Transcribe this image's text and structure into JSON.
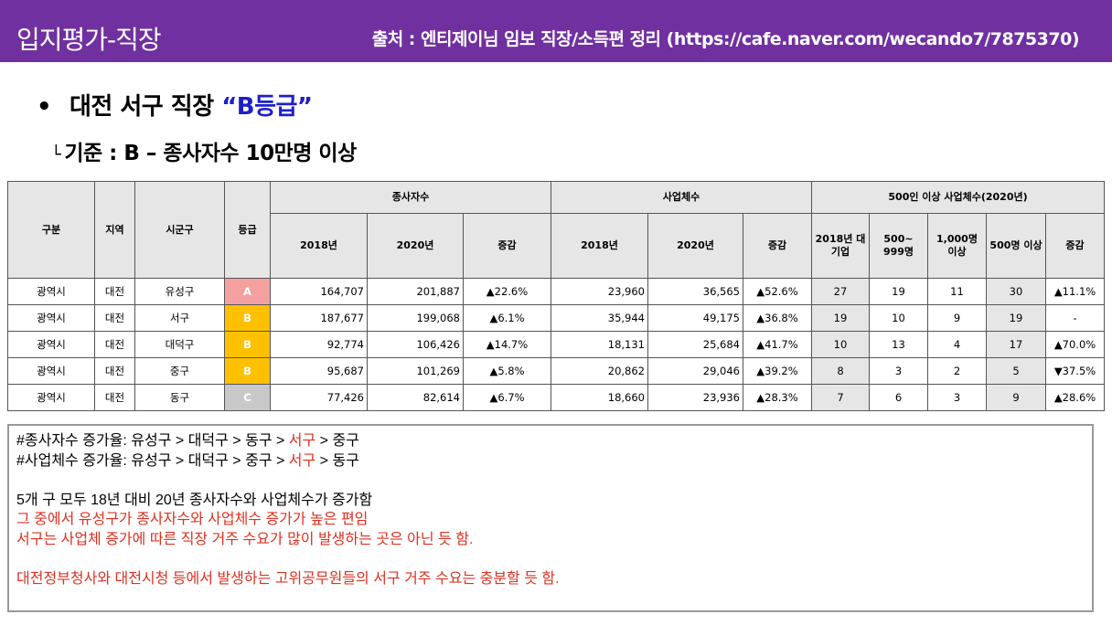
{
  "header": {
    "title": "입지평가-직장",
    "source": "출처 : 엔티제이님 임보 직장/소득편 정리 (https://cafe.naver.com/wecando7/7875370)"
  },
  "heading": {
    "bullet": "•",
    "prefix": "대전 서구 직장 ",
    "grade": "“B등급”"
  },
  "subheading": {
    "corner": "└",
    "text": "기준 : B – 종사자수 10만명 이상"
  },
  "colors": {
    "header_bg": "#7030a0",
    "grade_A": "#f4a0a0",
    "grade_B": "#ffc000",
    "grade_C": "#c8c8c8",
    "note_red": "#e03020",
    "heading_blue": "#1f1fc8"
  },
  "table": {
    "headers": {
      "category": "구분",
      "region": "지역",
      "district": "시군구",
      "grade": "등급",
      "employees": "종사자수",
      "businesses": "사업체수",
      "large": "500인 이상 사업체수(2020년)",
      "y2018": "2018년",
      "y2020": "2020년",
      "change": "증감",
      "large_2018": "2018년 대기업",
      "large_500_999": "500~ 999명",
      "large_1000": "1,000명 이상",
      "large_500plus": "500명 이상"
    },
    "rows": [
      {
        "category": "광역시",
        "region": "대전",
        "district": "유성구",
        "grade": "A",
        "grade_color": "#f4a0a0",
        "emp2018": "164,707",
        "emp2020": "201,887",
        "emp_change": "▲22.6%",
        "biz2018": "23,960",
        "biz2020": "36,565",
        "biz_change": "▲52.6%",
        "l2018": "27",
        "l500_999": "19",
        "l1000": "11",
        "l500plus": "30",
        "l_change": "▲11.1%"
      },
      {
        "category": "광역시",
        "region": "대전",
        "district": "서구",
        "grade": "B",
        "grade_color": "#ffc000",
        "emp2018": "187,677",
        "emp2020": "199,068",
        "emp_change": "▲6.1%",
        "biz2018": "35,944",
        "biz2020": "49,175",
        "biz_change": "▲36.8%",
        "l2018": "19",
        "l500_999": "10",
        "l1000": "9",
        "l500plus": "19",
        "l_change": "-"
      },
      {
        "category": "광역시",
        "region": "대전",
        "district": "대덕구",
        "grade": "B",
        "grade_color": "#ffc000",
        "emp2018": "92,774",
        "emp2020": "106,426",
        "emp_change": "▲14.7%",
        "biz2018": "18,131",
        "biz2020": "25,684",
        "biz_change": "▲41.7%",
        "l2018": "10",
        "l500_999": "13",
        "l1000": "4",
        "l500plus": "17",
        "l_change": "▲70.0%"
      },
      {
        "category": "광역시",
        "region": "대전",
        "district": "중구",
        "grade": "B",
        "grade_color": "#ffc000",
        "emp2018": "95,687",
        "emp2020": "101,269",
        "emp_change": "▲5.8%",
        "biz2018": "20,862",
        "biz2020": "29,046",
        "biz_change": "▲39.2%",
        "l2018": "8",
        "l500_999": "3",
        "l1000": "2",
        "l500plus": "5",
        "l_change": "▼37.5%"
      },
      {
        "category": "광역시",
        "region": "대전",
        "district": "동구",
        "grade": "C",
        "grade_color": "#c8c8c8",
        "emp2018": "77,426",
        "emp2020": "82,614",
        "emp_change": "▲6.7%",
        "biz2018": "18,660",
        "biz2020": "23,936",
        "biz_change": "▲28.3%",
        "l2018": "7",
        "l500_999": "6",
        "l1000": "3",
        "l500plus": "9",
        "l_change": "▲28.6%"
      }
    ]
  },
  "notes": {
    "emp_rank": {
      "label": "#종사자수 증가율: ",
      "items": [
        "유성구",
        "대덕구",
        "동구",
        "서구",
        "중구"
      ],
      "highlight": "서구",
      "sep": " > "
    },
    "biz_rank": {
      "label": "#사업체수 증가율: ",
      "items": [
        "유성구",
        "대덕구",
        "중구",
        "서구",
        "동구"
      ],
      "highlight": "서구",
      "sep": " > "
    },
    "line3": "5개 구 모두 18년 대비 20년 종사자수와 사업체수가 증가함",
    "line4": "그 중에서 유성구가 종사자수와 사업체수 증가가 높은 편임",
    "line5": "서구는 사업체 증가에 따른 직장 거주 수요가 많이 발생하는 곳은 아닌 듯 함.",
    "line6": "대전정부청사와 대전시청 등에서 발생하는 고위공무원들의 서구 거주 수요는 충분할 듯 함."
  }
}
